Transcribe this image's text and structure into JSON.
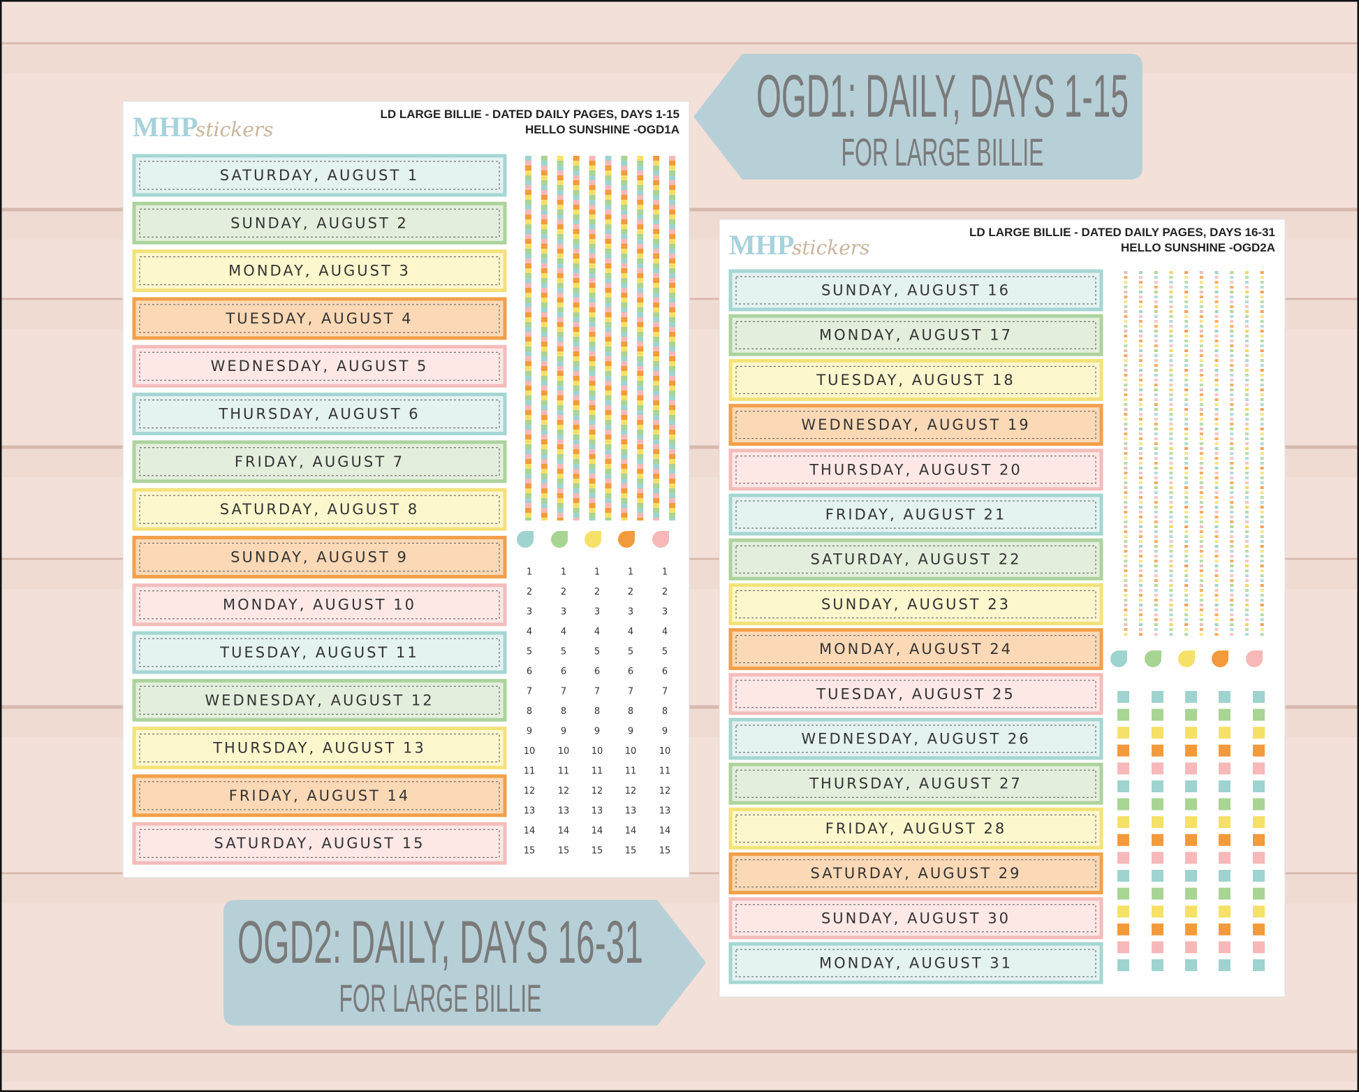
{
  "banners": [
    {
      "title": "OGD1: DAILY, DAYS 1-15",
      "subtitle": "FOR LARGE BILLIE"
    },
    {
      "title": "OGD2: DAILY, DAYS 16-31",
      "subtitle": "FOR LARGE BILLIE"
    }
  ],
  "sheets": [
    {
      "brand": "MHP",
      "brand_script": "stickers",
      "header_line1": "LD LARGE BILLIE  -  DATED DAILY PAGES, DAYS 1-15",
      "header_line2": "HELLO SUNSHINE -OGD1A",
      "days": [
        "SATURDAY, AUGUST 1",
        "SUNDAY, AUGUST 2",
        "MONDAY, AUGUST 3",
        "TUESDAY, AUGUST 4",
        "WEDNESDAY, AUGUST 5",
        "THURSDAY, AUGUST 6",
        "FRIDAY, AUGUST 7",
        "SATURDAY, AUGUST 8",
        "SUNDAY, AUGUST 9",
        "MONDAY, AUGUST 10",
        "TUESDAY, AUGUST 11",
        "WEDNESDAY, AUGUST 12",
        "THURSDAY, AUGUST 13",
        "FRIDAY, AUGUST 14",
        "SATURDAY, AUGUST 15"
      ],
      "numbers": [
        1,
        2,
        3,
        4,
        5,
        6,
        7,
        8,
        9,
        10,
        11,
        12,
        13,
        14,
        15
      ]
    },
    {
      "brand": "MHP",
      "brand_script": "stickers",
      "header_line1": "LD LARGE BILLIE - DATED DAILY PAGES, DAYS 16-31",
      "header_line2": "HELLO SUNSHINE -OGD2A",
      "days": [
        "SUNDAY, AUGUST 16",
        "MONDAY, AUGUST 17",
        "TUESDAY, AUGUST 18",
        "WEDNESDAY, AUGUST 19",
        "THURSDAY, AUGUST 20",
        "FRIDAY, AUGUST 21",
        "SATURDAY, AUGUST 22",
        "SUNDAY, AUGUST 23",
        "MONDAY, AUGUST 24",
        "TUESDAY, AUGUST 25",
        "WEDNESDAY, AUGUST 26",
        "THURSDAY, AUGUST 27",
        "FRIDAY, AUGUST 28",
        "SATURDAY, AUGUST 29",
        "SUNDAY, AUGUST 30",
        "MONDAY, AUGUST 31"
      ]
    }
  ]
}
